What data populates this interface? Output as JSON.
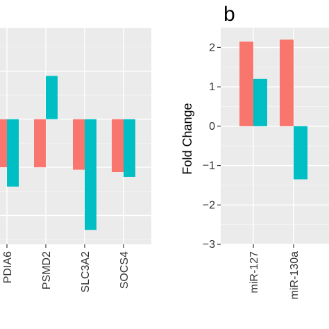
{
  "chart_data": [
    {
      "type": "bar",
      "panel": "",
      "categories": [
        "PDIA6",
        "PSMD2",
        "SLC3A2",
        "SOCS4"
      ],
      "series": [
        {
          "values": [
            -1.0,
            -1.0,
            -1.05,
            -1.1
          ]
        },
        {
          "values": [
            -1.4,
            0.9,
            -2.3,
            -1.2
          ]
        }
      ],
      "ylim": [
        -2.6,
        1.9
      ],
      "grid": true
    },
    {
      "type": "bar",
      "panel": "b",
      "categories": [
        "miR-127",
        "miR-130a"
      ],
      "series": [
        {
          "values": [
            2.15,
            2.2
          ]
        },
        {
          "values": [
            1.2,
            -1.35
          ]
        }
      ],
      "ylabel": "Fold Change",
      "yticks": [
        "2",
        "1",
        "0",
        "−1",
        "−2",
        "−3"
      ],
      "ylim": [
        -3,
        2.5
      ],
      "grid": true
    }
  ],
  "colors": {
    "series1": "#F8766D",
    "series2": "#00BFC4",
    "panel_bg": "#EBEBEB",
    "grid_major": "#FFFFFF",
    "grid_minor": "#F5F5F5"
  }
}
